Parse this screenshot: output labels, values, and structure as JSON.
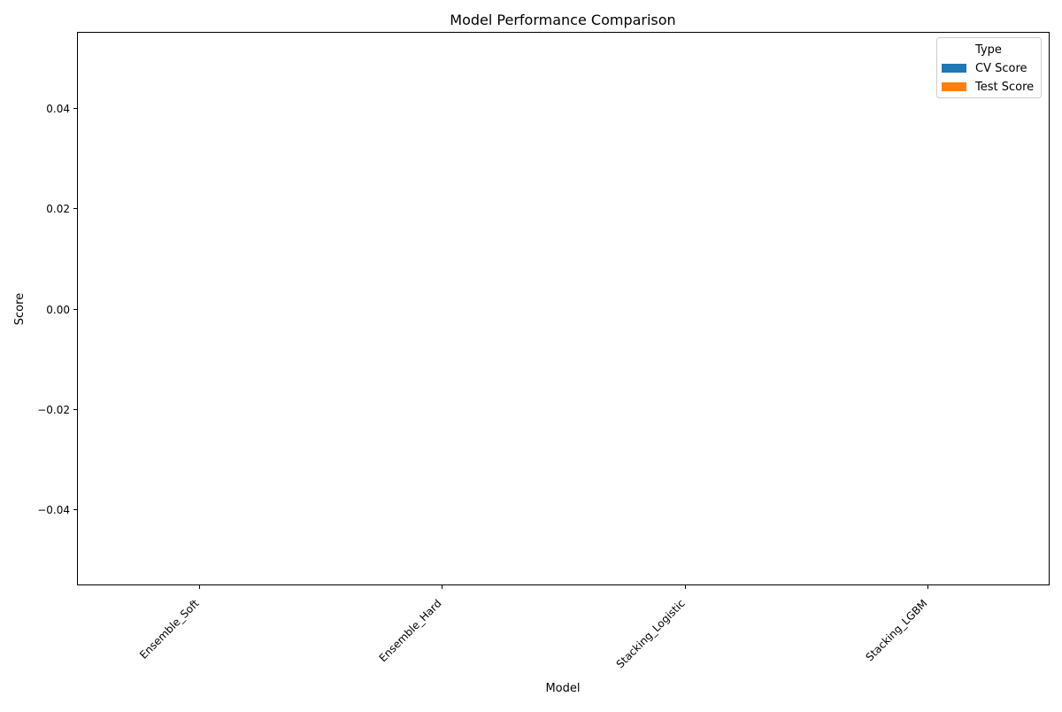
{
  "chart_data": {
    "type": "bar",
    "title": "Model Performance Comparison",
    "xlabel": "Model",
    "ylabel": "Score",
    "categories": [
      "Ensemble_Soft",
      "Ensemble_Hard",
      "Stacking_Logistic",
      "Stacking_LGBM"
    ],
    "series": [
      {
        "name": "CV Score",
        "color": "#1f77b4",
        "values": [
          0,
          0,
          0,
          0
        ]
      },
      {
        "name": "Test Score",
        "color": "#ff7f0e",
        "values": [
          0,
          0,
          0,
          0
        ]
      }
    ],
    "ylim": [
      -0.055,
      0.055
    ],
    "yticks": [
      -0.04,
      -0.02,
      0.0,
      0.02,
      0.04
    ],
    "ytick_labels": [
      "−0.04",
      "−0.02",
      "0.00",
      "0.02",
      "0.04"
    ],
    "legend": {
      "title": "Type",
      "placement": "top-right"
    },
    "grid": false
  }
}
